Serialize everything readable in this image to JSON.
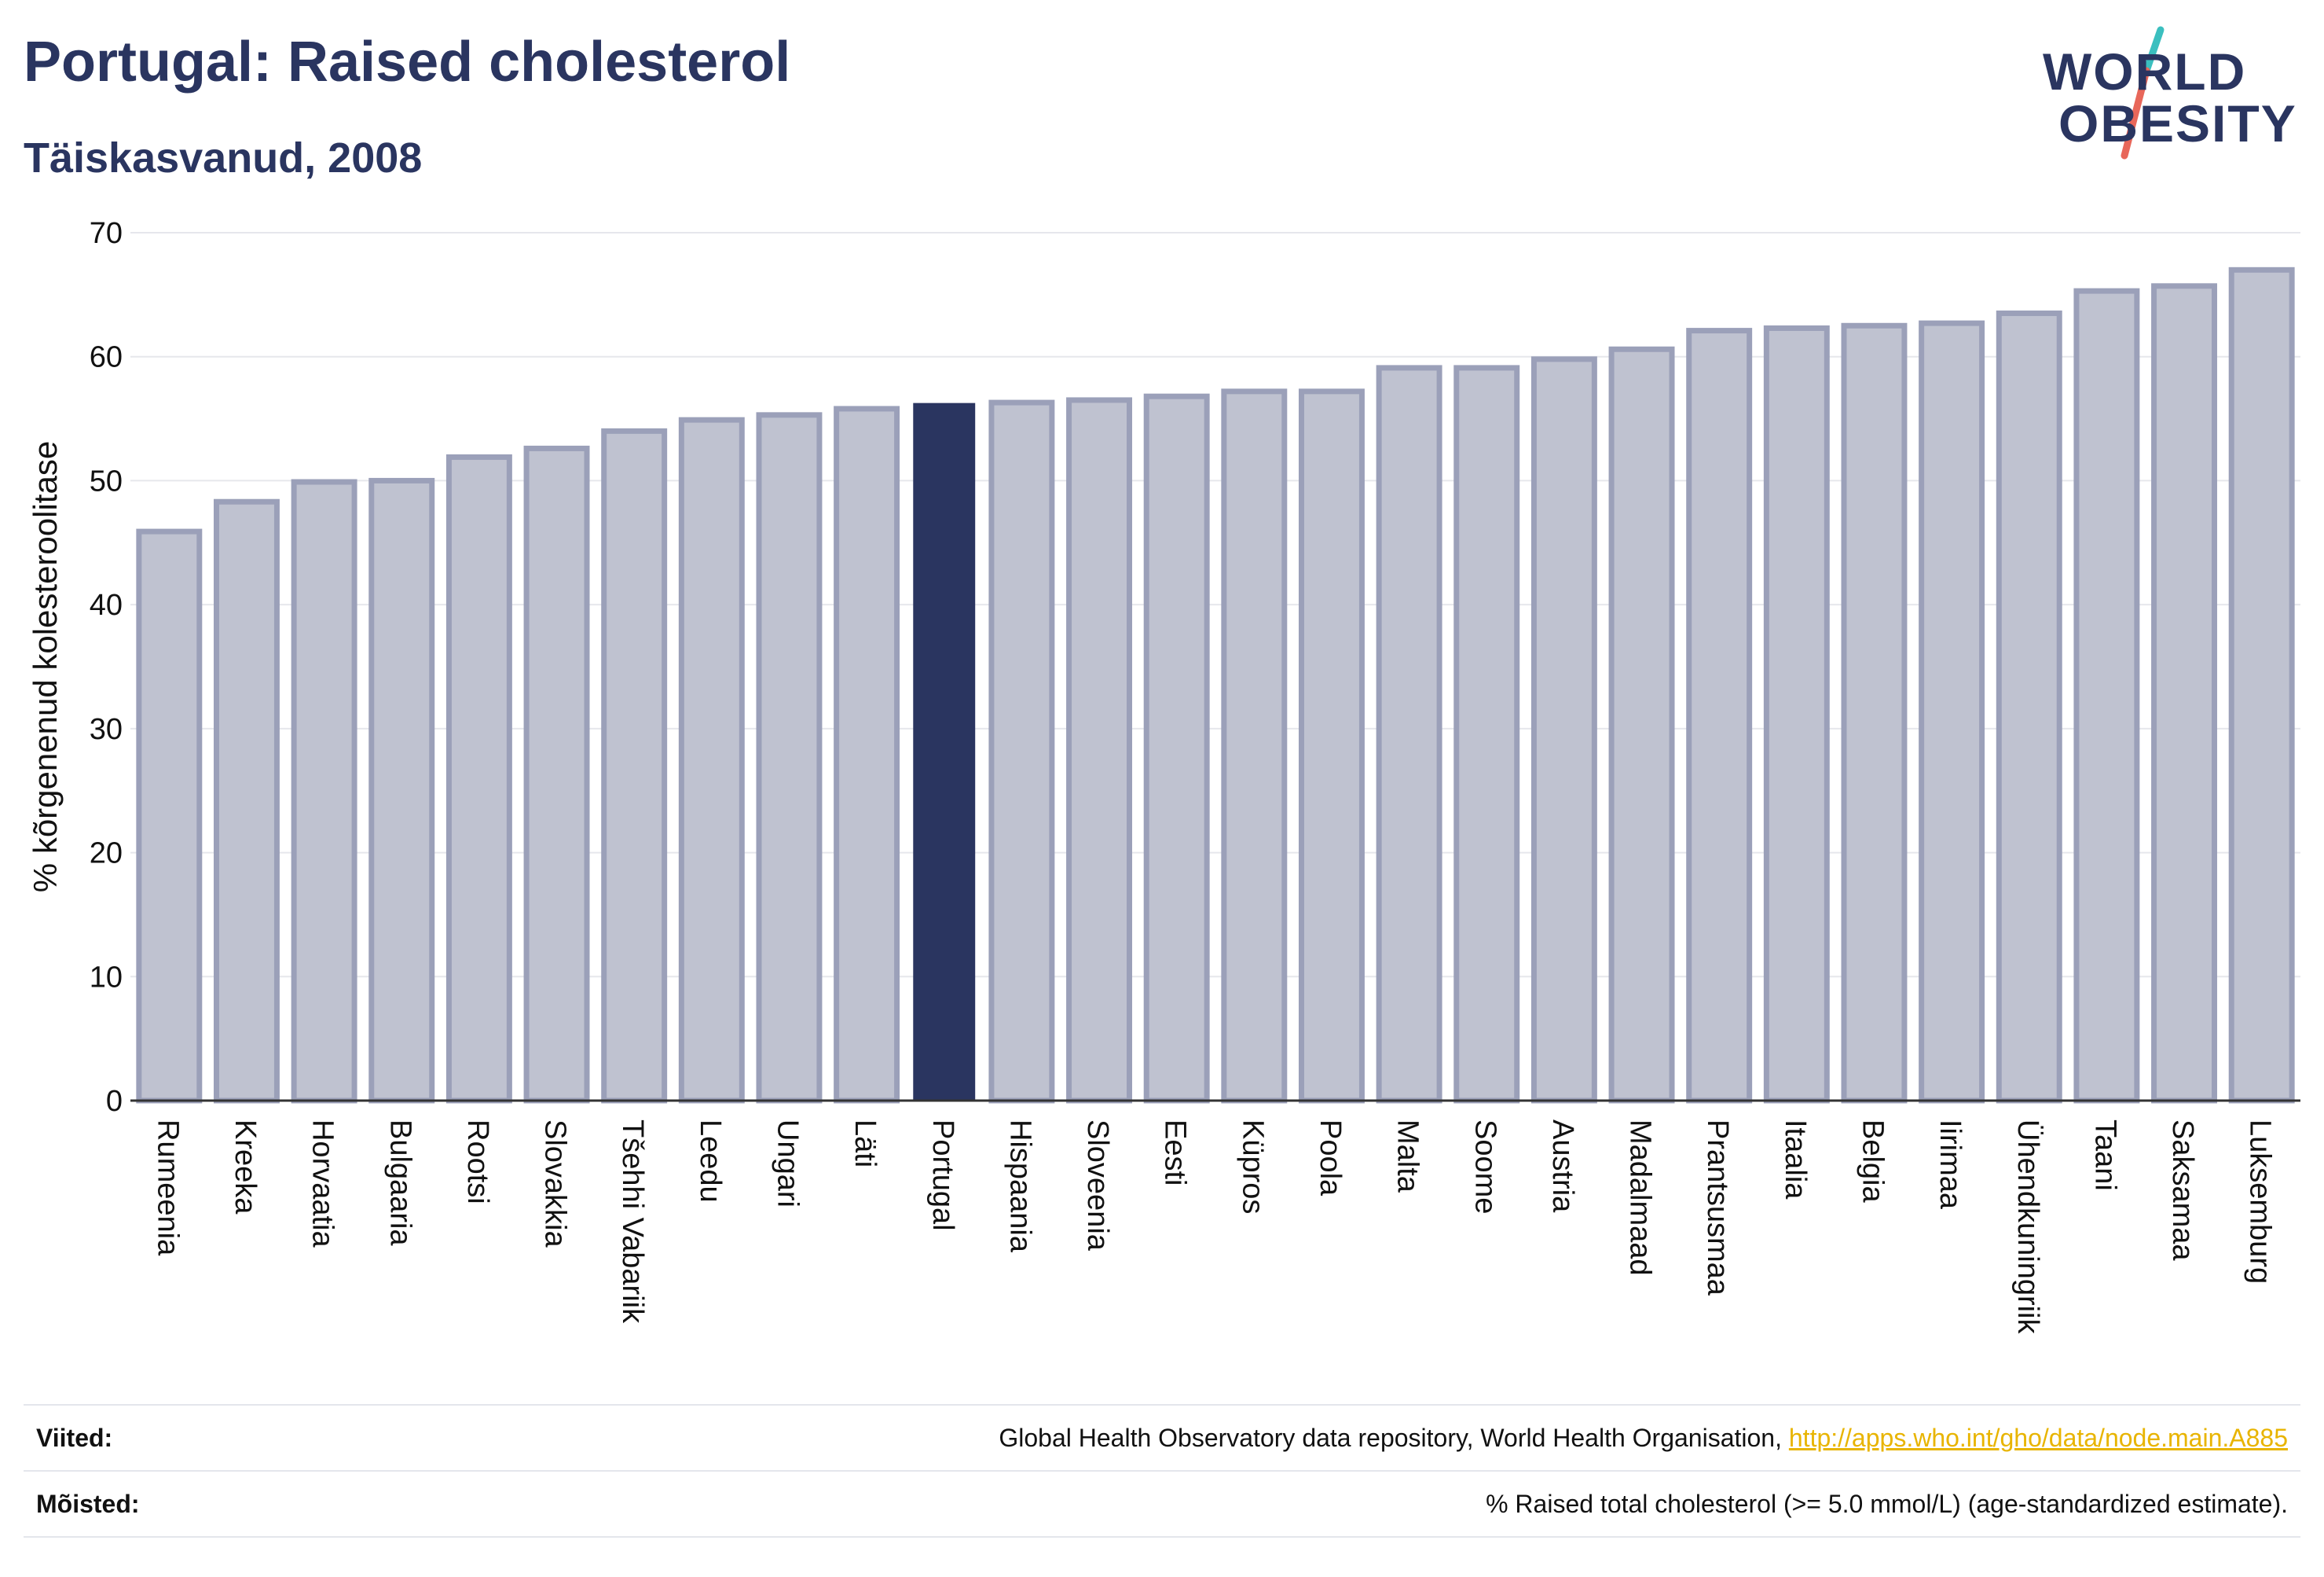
{
  "header": {
    "title": "Portugal: Raised cholesterol",
    "subtitle": "Täiskasvanud, 2008"
  },
  "logo": {
    "line1": "WORLD",
    "line2": "OBESITY",
    "colors": {
      "text": "#2a3560",
      "slash_top": "#3bbfbf",
      "slash_bottom": "#e8675a"
    }
  },
  "footer": {
    "sources_label": "Viited:",
    "sources_text": "Global Health Observatory data repository, World Health Organisation,",
    "sources_link": "http://apps.who.int/gho/data/node.main.A885",
    "definitions_label": "Mõisted:",
    "definitions_text": "% Raised total cholesterol (>= 5.0 mmol/L) (age-standardized estimate)."
  },
  "chart_data": {
    "type": "bar",
    "ylabel": "% kõrgenenud kolesteroolitase",
    "ylim": [
      0,
      70
    ],
    "yticks": [
      0,
      10,
      20,
      30,
      40,
      50,
      60,
      70
    ],
    "grid": true,
    "highlight": "Portugal",
    "colors": {
      "bar": "#bfc2d0",
      "bar_border": "#9ba0b9",
      "highlight": "#2a3560",
      "grid": "#e6e7ec"
    },
    "categories": [
      "Rumeenia",
      "Kreeka",
      "Horvaatia",
      "Bulgaaria",
      "Rootsi",
      "Slovakkia",
      "Tšehhi Vabariik",
      "Leedu",
      "Ungari",
      "Läti",
      "Portugal",
      "Hispaania",
      "Sloveenia",
      "Eesti",
      "Küpros",
      "Poola",
      "Malta",
      "Soome",
      "Austria",
      "Madalmaad",
      "Prantsusmaa",
      "Itaalia",
      "Belgia",
      "Iirimaa",
      "Ühendkuningriik",
      "Taani",
      "Saksamaa",
      "Luksemburg"
    ],
    "values": [
      45.9,
      48.3,
      49.9,
      50.0,
      51.9,
      52.6,
      54.0,
      54.9,
      55.3,
      55.8,
      56.2,
      56.3,
      56.5,
      56.8,
      57.2,
      57.2,
      59.1,
      59.1,
      59.8,
      60.6,
      62.1,
      62.3,
      62.5,
      62.7,
      63.5,
      65.3,
      65.7,
      67.0
    ]
  }
}
